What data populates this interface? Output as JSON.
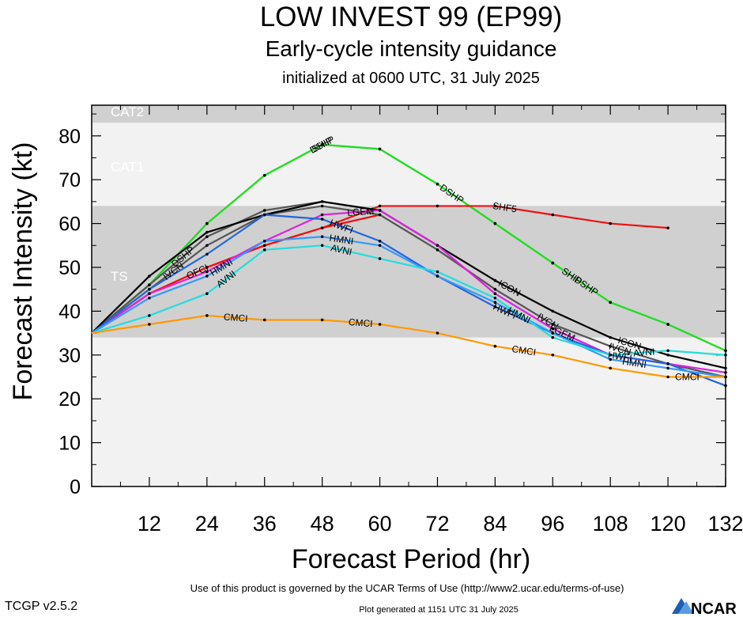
{
  "header": {
    "title": "LOW INVEST 99 (EP99)",
    "subtitle": "Early-cycle intensity guidance",
    "initialized": "initialized at 0600 UTC, 31 July 2025"
  },
  "footer": {
    "version": "TCGP v2.5.2",
    "terms": "Use of this product is governed by the UCAR Terms of Use (http://www2.ucar.edu/terms-of-use)",
    "generated": "Plot generated at 1151 UTC   31 July 2025",
    "logo_text": "NCAR"
  },
  "chart_data": {
    "type": "line",
    "xlabel": "Forecast Period (hr)",
    "ylabel": "Forecast Intensity (kt)",
    "xlim": [
      0,
      132
    ],
    "ylim": [
      0,
      87
    ],
    "xticks": [
      12,
      24,
      36,
      48,
      60,
      72,
      84,
      96,
      108,
      120,
      132
    ],
    "yticks": [
      0,
      10,
      20,
      30,
      40,
      50,
      60,
      70,
      80
    ],
    "colors": {
      "plot_background": "#f2f2f2",
      "band": "#d0d0d0",
      "band_label": "#ffffff"
    },
    "bands": [
      {
        "label": "TS",
        "from": 34,
        "to": 64,
        "shaded": true
      },
      {
        "label": "CAT1",
        "from": 64,
        "to": 83,
        "shaded": false
      },
      {
        "label": "CAT2",
        "from": 83,
        "to": 87,
        "shaded": true
      }
    ],
    "series": [
      {
        "name": "SHIP",
        "color": "#22dd22",
        "label_positions": [
          48,
          100
        ],
        "x": [
          0,
          12,
          24,
          36,
          48,
          60,
          72,
          84,
          96,
          108,
          120,
          132
        ],
        "y": [
          35,
          46,
          60,
          71,
          78,
          77,
          69,
          60,
          51,
          42,
          37,
          31
        ]
      },
      {
        "name": "DSHP",
        "color": "#22dd22",
        "label_positions": [
          48,
          75,
          103
        ],
        "x": [
          0,
          12,
          24,
          36,
          48,
          60,
          72,
          84,
          96,
          108,
          120,
          132
        ],
        "y": [
          35,
          46,
          60,
          71,
          78,
          77,
          69,
          60,
          51,
          42,
          37,
          31
        ]
      },
      {
        "name": "SHF5",
        "color": "#ee1111",
        "label_positions": [
          86
        ],
        "x": [
          0,
          12,
          24,
          36,
          48,
          60,
          72,
          84,
          96,
          108,
          120
        ],
        "y": [
          35,
          44,
          50,
          55,
          59,
          64,
          64,
          64,
          62,
          60,
          59
        ]
      },
      {
        "name": "OFCI",
        "color": "#ee1111",
        "label_positions": [
          22
        ],
        "x": [
          0,
          12,
          24,
          36,
          48,
          60
        ],
        "y": [
          35,
          44,
          50,
          55,
          59,
          62
        ]
      },
      {
        "name": "IVCN",
        "color": "#555555",
        "label_positions": [
          17,
          95,
          110
        ],
        "x": [
          0,
          12,
          24,
          36,
          48,
          60,
          72,
          84,
          96,
          108,
          120,
          132
        ],
        "y": [
          35,
          45,
          55,
          62,
          64,
          62,
          54,
          45,
          37,
          32,
          28,
          25
        ]
      },
      {
        "name": "DSHP",
        "color": "#555555",
        "label_positions": [
          19
        ],
        "x": [
          0,
          12,
          24,
          36,
          48,
          60
        ],
        "y": [
          35,
          46,
          57,
          63,
          65,
          63
        ]
      },
      {
        "name": "ICON",
        "color": "#000000",
        "label_positions": [
          87,
          112
        ],
        "x": [
          0,
          12,
          24,
          36,
          48,
          60,
          72,
          84,
          96,
          108,
          120,
          132
        ],
        "y": [
          35,
          48,
          58,
          62,
          65,
          63,
          55,
          47,
          40,
          34,
          30,
          27
        ]
      },
      {
        "name": "LGEM",
        "color": "#dd22dd",
        "label_positions": [
          56,
          98
        ],
        "x": [
          0,
          12,
          24,
          36,
          48,
          60,
          72,
          84,
          96,
          108,
          120,
          132
        ],
        "y": [
          35,
          44,
          49,
          56,
          62,
          63,
          55,
          44,
          36,
          30,
          28,
          26
        ]
      },
      {
        "name": "HWFI",
        "color": "#2266dd",
        "label_positions": [
          52,
          86,
          110
        ],
        "x": [
          0,
          12,
          24,
          36,
          48,
          60,
          72,
          84,
          96,
          108,
          120,
          132
        ],
        "y": [
          35,
          45,
          53,
          62,
          61,
          56,
          48,
          41,
          35,
          30,
          28,
          23
        ]
      },
      {
        "name": "HMNI",
        "color": "#3399ff",
        "label_positions": [
          27,
          52,
          89,
          113
        ],
        "x": [
          0,
          12,
          24,
          36,
          48,
          60,
          72,
          84,
          96,
          108,
          120,
          132
        ],
        "y": [
          35,
          43,
          48,
          56,
          57,
          55,
          48,
          42,
          35,
          29,
          27,
          25
        ]
      },
      {
        "name": "AVNI",
        "color": "#22dddd",
        "label_positions": [
          28,
          52,
          115
        ],
        "x": [
          0,
          12,
          24,
          36,
          48,
          60,
          72,
          84,
          96,
          108,
          120,
          132
        ],
        "y": [
          35,
          39,
          44,
          54,
          55,
          52,
          49,
          43,
          34,
          30,
          31,
          30
        ]
      },
      {
        "name": "CMCI",
        "color": "#ff9900",
        "label_positions": [
          30,
          56,
          90,
          124
        ],
        "x": [
          0,
          12,
          24,
          36,
          48,
          60,
          72,
          84,
          96,
          108,
          120,
          126,
          132
        ],
        "y": [
          35,
          37,
          39,
          38,
          38,
          37,
          35,
          32,
          30,
          27,
          25,
          25,
          25
        ]
      }
    ]
  }
}
